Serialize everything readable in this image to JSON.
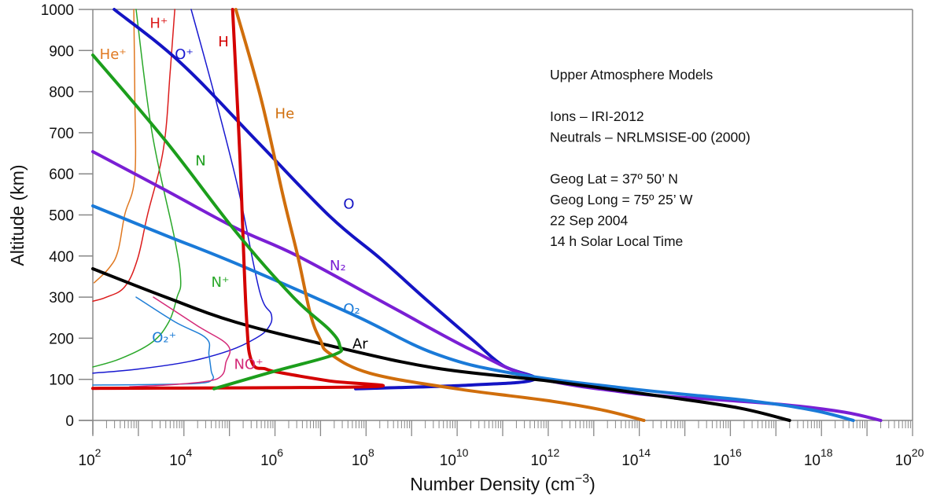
{
  "chart_data": {
    "type": "line",
    "title": "Upper Atmosphere Models",
    "xlabel": "Number Density (cm",
    "xlabel_sup": "−3",
    "xlabel_end": ")",
    "ylabel": "Altitude (km)",
    "xscale": "log",
    "xlim_log10": [
      2,
      20
    ],
    "ylim": [
      0,
      1000
    ],
    "x_ticks": [
      {
        "base": "10",
        "exp": "2"
      },
      {
        "base": "10",
        "exp": "4"
      },
      {
        "base": "10",
        "exp": "6"
      },
      {
        "base": "10",
        "exp": "8"
      },
      {
        "base": "10",
        "exp": "10"
      },
      {
        "base": "10",
        "exp": "12"
      },
      {
        "base": "10",
        "exp": "14"
      },
      {
        "base": "10",
        "exp": "16"
      },
      {
        "base": "10",
        "exp": "18"
      },
      {
        "base": "10",
        "exp": "20"
      }
    ],
    "y_ticks": [
      "0",
      "100",
      "200",
      "300",
      "400",
      "500",
      "600",
      "700",
      "800",
      "900",
      "1000"
    ],
    "grid": false,
    "annotations": [
      "Upper Atmosphere Models",
      "",
      "Ions – IRI-2012",
      "Neutrals – NRLMSISE-00 (2000)",
      "",
      "Geog Lat = 37º 50’ N",
      "Geog Long = 75º 25’ W",
      "22 Sep 2004",
      "14 h  Solar Local Time"
    ],
    "series": [
      {
        "name": "O",
        "kind": "neutral",
        "color": "#1414c4",
        "label": "O",
        "label_pos": [
          7.5,
          515
        ],
        "points": [
          [
            2.47,
            1000
          ],
          [
            3.93,
            870
          ],
          [
            5.6,
            680
          ],
          [
            7.2,
            497
          ],
          [
            8.3,
            395
          ],
          [
            9.3,
            296
          ],
          [
            10.3,
            200
          ],
          [
            11.0,
            134
          ],
          [
            11.7,
            100
          ],
          [
            10.3,
            86
          ],
          [
            7.77,
            77
          ]
        ]
      },
      {
        "name": "N2",
        "kind": "neutral",
        "color": "#7a1fd4",
        "label": "N₂",
        "label_pos": [
          7.2,
          365
        ],
        "points": [
          [
            2,
            654
          ],
          [
            3.6,
            560
          ],
          [
            5.14,
            468
          ],
          [
            6.5,
            400
          ],
          [
            8.5,
            280
          ],
          [
            10.3,
            172
          ],
          [
            11.7,
            105
          ],
          [
            13.8,
            67
          ],
          [
            15.5,
            52
          ],
          [
            17.2,
            38
          ],
          [
            18.5,
            20
          ],
          [
            19.3,
            0
          ]
        ]
      },
      {
        "name": "O2",
        "kind": "neutral",
        "color": "#1a7ad8",
        "label": "O₂",
        "label_pos": [
          7.5,
          260
        ],
        "points": [
          [
            2,
            522
          ],
          [
            3.6,
            450
          ],
          [
            5.14,
            382
          ],
          [
            7.7,
            258
          ],
          [
            9.5,
            163
          ],
          [
            11.2,
            115
          ],
          [
            13.8,
            77
          ],
          [
            16.4,
            48
          ],
          [
            17.8,
            25
          ],
          [
            18.7,
            0
          ]
        ]
      },
      {
        "name": "Ar",
        "kind": "neutral",
        "color": "#000000",
        "label": "Ar",
        "label_pos": [
          7.7,
          175
        ],
        "points": [
          [
            2,
            369
          ],
          [
            3.6,
            300
          ],
          [
            5.14,
            239
          ],
          [
            7.2,
            182
          ],
          [
            9.5,
            128
          ],
          [
            12.0,
            96
          ],
          [
            14.6,
            57
          ],
          [
            16.2,
            30
          ],
          [
            17.3,
            0
          ]
        ]
      },
      {
        "name": "He",
        "kind": "neutral",
        "color": "#d06e0c",
        "label": "He",
        "label_pos": [
          6.0,
          735
        ],
        "points": [
          [
            5.14,
            1000
          ],
          [
            5.7,
            780
          ],
          [
            6.18,
            545
          ],
          [
            6.5,
            400
          ],
          [
            6.78,
            258
          ],
          [
            7.0,
            195
          ],
          [
            7.2,
            163
          ],
          [
            8.08,
            115
          ],
          [
            9.98,
            77
          ],
          [
            12.0,
            48
          ],
          [
            13.2,
            25
          ],
          [
            14.1,
            0
          ]
        ]
      },
      {
        "name": "H",
        "kind": "neutral",
        "color": "#d40000",
        "label": "H",
        "label_pos": [
          4.75,
          910
        ],
        "points": [
          [
            5.07,
            1000
          ],
          [
            5.23,
            640
          ],
          [
            5.37,
            258
          ],
          [
            5.49,
            143
          ],
          [
            5.8,
            125
          ],
          [
            6.18,
            115
          ],
          [
            7.2,
            96
          ],
          [
            8.07,
            82
          ],
          [
            2,
            78
          ]
        ]
      },
      {
        "name": "N",
        "kind": "neutral",
        "color": "#1c9e1c",
        "label": "N",
        "label_pos": [
          4.25,
          620
        ],
        "points": [
          [
            2,
            889
          ],
          [
            3.6,
            680
          ],
          [
            5.14,
            459
          ],
          [
            6.4,
            300
          ],
          [
            7.2,
            220
          ],
          [
            7.42,
            182
          ],
          [
            7.3,
            160
          ],
          [
            6.0,
            120
          ],
          [
            4.66,
            77
          ]
        ]
      },
      {
        "name": "He+",
        "kind": "ion",
        "color": "#e07820",
        "label": "He⁺",
        "label_pos": [
          2.15,
          880
        ],
        "points": [
          [
            2.9,
            1000
          ],
          [
            2.92,
            800
          ],
          [
            2.92,
            593
          ],
          [
            2.7,
            500
          ],
          [
            2.55,
            411
          ],
          [
            2.35,
            370
          ],
          [
            2.03,
            335
          ]
        ]
      },
      {
        "name": "H+",
        "kind": "ion",
        "color": "#dc1c1c",
        "label": "H⁺",
        "label_pos": [
          3.25,
          955
        ],
        "points": [
          [
            3.8,
            1000
          ],
          [
            3.7,
            850
          ],
          [
            3.55,
            660
          ],
          [
            3.2,
            500
          ],
          [
            2.98,
            392
          ],
          [
            2.7,
            325
          ],
          [
            2.3,
            300
          ],
          [
            2,
            290
          ]
        ]
      },
      {
        "name": "N+",
        "kind": "ion",
        "color": "#2aa82a",
        "label": "N⁺",
        "label_pos": [
          4.6,
          325
        ],
        "points": [
          [
            2.95,
            1000
          ],
          [
            3.3,
            700
          ],
          [
            3.8,
            440
          ],
          [
            3.93,
            340
          ],
          [
            3.85,
            300
          ],
          [
            3.67,
            240
          ],
          [
            3.3,
            190
          ],
          [
            2.6,
            150
          ],
          [
            2,
            130
          ]
        ]
      },
      {
        "name": "O+",
        "kind": "ion",
        "color": "#1818d0",
        "label": "O⁺",
        "label_pos": [
          3.8,
          880
        ],
        "points": [
          [
            4.16,
            1000
          ],
          [
            4.7,
            780
          ],
          [
            5.2,
            560
          ],
          [
            5.66,
            315
          ],
          [
            5.92,
            258
          ],
          [
            5.85,
            225
          ],
          [
            5.58,
            200
          ],
          [
            5.0,
            170
          ],
          [
            4.1,
            143
          ],
          [
            3.0,
            125
          ],
          [
            2,
            115
          ]
        ]
      },
      {
        "name": "O2+",
        "kind": "ion",
        "color": "#1f7ed6",
        "label": "O₂⁺",
        "label_pos": [
          3.3,
          190
        ],
        "points": [
          [
            2.95,
            300
          ],
          [
            3.8,
            240
          ],
          [
            4.49,
            200
          ],
          [
            4.55,
            160
          ],
          [
            4.6,
            120
          ],
          [
            4.63,
            100
          ],
          [
            4.3,
            90
          ],
          [
            3.0,
            87
          ],
          [
            2,
            86
          ]
        ]
      },
      {
        "name": "NO+",
        "kind": "ion",
        "color": "#d42a78",
        "label": "NO⁺",
        "label_pos": [
          5.1,
          125
        ],
        "points": [
          [
            3.33,
            300
          ],
          [
            4.3,
            230
          ],
          [
            4.97,
            182
          ],
          [
            4.92,
            140
          ],
          [
            4.83,
            109
          ],
          [
            4.5,
            95
          ],
          [
            3.6,
            86
          ],
          [
            2.81,
            82
          ]
        ]
      }
    ]
  }
}
